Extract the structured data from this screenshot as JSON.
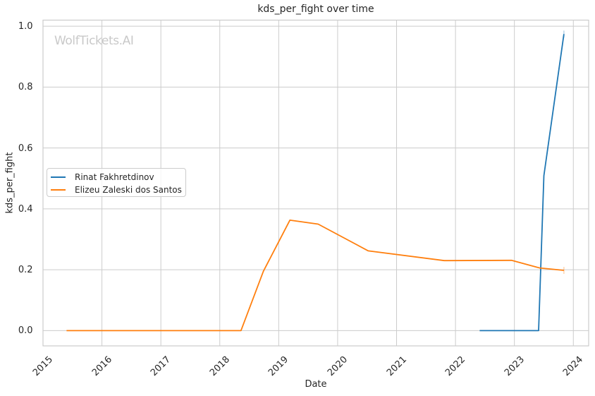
{
  "watermark": {
    "text": "WolfTickets.AI",
    "color": "#c9c9c9"
  },
  "chart_data": {
    "type": "line",
    "title": "kds_per_fight over time",
    "xlabel": "Date",
    "ylabel": "kds_per_fight",
    "grid": true,
    "legend_position": "center left",
    "xlim": [
      2015.0,
      2024.26
    ],
    "ylim": [
      -0.05,
      1.02
    ],
    "x_ticks": [
      "2015",
      "2016",
      "2017",
      "2018",
      "2019",
      "2020",
      "2021",
      "2022",
      "2023",
      "2024"
    ],
    "y_ticks": [
      "0.0",
      "0.2",
      "0.4",
      "0.6",
      "0.8",
      "1.0"
    ],
    "y_tick_values": [
      0.0,
      0.2,
      0.4,
      0.6,
      0.8,
      1.0
    ],
    "x_tick_values": [
      2015,
      2016,
      2017,
      2018,
      2019,
      2020,
      2021,
      2022,
      2023,
      2024
    ],
    "series": [
      {
        "name": "Rinat Fakhretdinov",
        "color": "#1f77b4",
        "points": [
          [
            2022.41,
            0.0
          ],
          [
            2023.41,
            0.0
          ],
          [
            2023.5,
            0.509
          ],
          [
            2023.84,
            0.974
          ]
        ]
      },
      {
        "name": "Elizeu Zaleski dos Santos",
        "color": "#ff7f0e",
        "points": [
          [
            2015.4,
            0.0
          ],
          [
            2018.36,
            0.0
          ],
          [
            2018.74,
            0.195
          ],
          [
            2019.19,
            0.363
          ],
          [
            2019.67,
            0.35
          ],
          [
            2020.52,
            0.262
          ],
          [
            2021.81,
            0.23
          ],
          [
            2022.95,
            0.231
          ],
          [
            2023.43,
            0.206
          ],
          [
            2023.84,
            0.198
          ]
        ]
      }
    ],
    "colors": {
      "grid": "#cccccc",
      "spine": "#cccccc",
      "text": "#262626"
    }
  }
}
